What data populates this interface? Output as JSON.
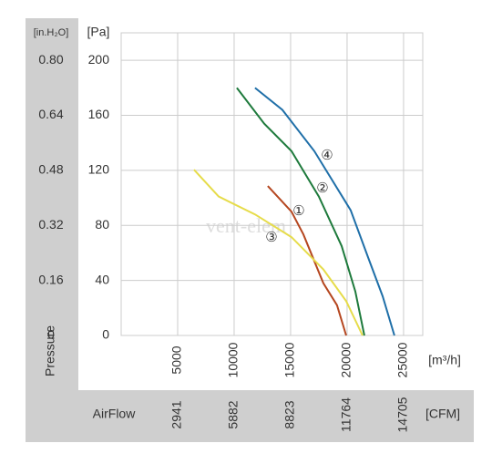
{
  "chart_data": {
    "type": "line",
    "y_label": "[Pa]",
    "y2_label": "[in.H₂O]",
    "x_label": "[m³/h]",
    "x2_label": "[CFM]",
    "y_axis_title": "Pressure",
    "x_axis_title": "AirFlow",
    "watermark": "vent-elem",
    "xlim": [
      0,
      26700
    ],
    "xticks": [
      5000,
      10000,
      15000,
      20000,
      25000
    ],
    "x2lim": [
      0,
      15706
    ],
    "x2ticks": [
      2941,
      5882,
      8823,
      11764,
      14705
    ],
    "ylim": [
      0,
      220
    ],
    "yticks": [
      0,
      40,
      80,
      120,
      160,
      200
    ],
    "y2lim": [
      0,
      0.88
    ],
    "y2ticks": [
      0,
      0.16,
      0.32,
      0.48,
      0.64,
      {
        "value": 0.8,
        "label": "0.80"
      }
    ],
    "grid": true,
    "series": [
      {
        "name": "①",
        "color": "#b5461f",
        "x": [
          12980,
          15080,
          16130,
          17900,
          19110,
          19920
        ],
        "values": [
          108.6,
          90,
          73.5,
          38,
          22,
          0
        ]
      },
      {
        "name": "②",
        "color": "#1e7a3c",
        "x": [
          10240,
          12660,
          15080,
          17500,
          19520,
          20730,
          21530
        ],
        "values": [
          180,
          154,
          134,
          101,
          65,
          32,
          0
        ]
      },
      {
        "name": "③",
        "color": "#e6dc4a",
        "x": [
          6450,
          8630,
          11850,
          15080,
          17900,
          19920,
          21370
        ],
        "values": [
          120.5,
          101,
          88,
          71.5,
          48,
          25,
          0
        ]
      },
      {
        "name": "④",
        "color": "#1f6fa8",
        "x": [
          11850,
          14270,
          17100,
          20320,
          21940,
          23150,
          24190
        ],
        "values": [
          180,
          164,
          134,
          91,
          55,
          28.5,
          0
        ]
      }
    ]
  }
}
